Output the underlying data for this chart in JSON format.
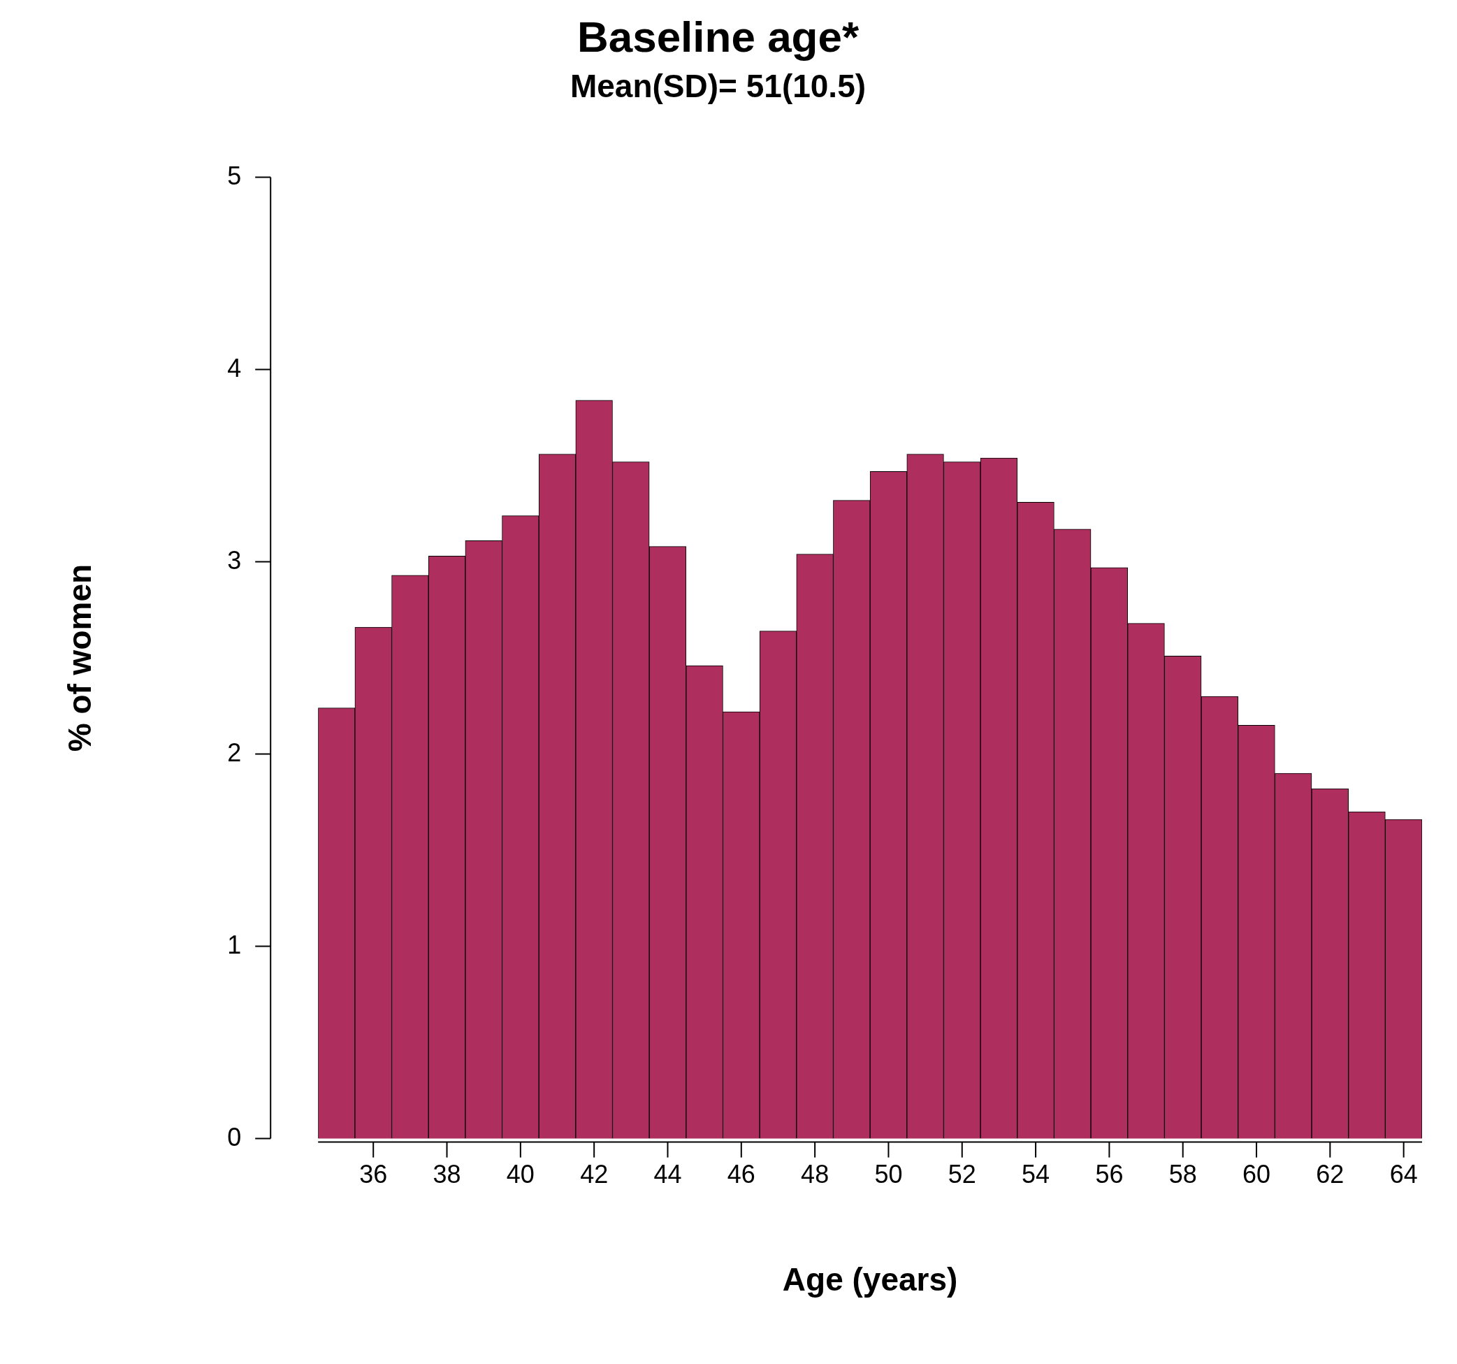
{
  "chart_data": {
    "type": "histogram",
    "title": "Baseline age*",
    "subtitle": "Mean(SD)= 51(10.5)",
    "xlabel": "Age (years)",
    "ylabel": "% of women",
    "bins": [
      34.5,
      35.5,
      36.5,
      37.5,
      38.5,
      39.5,
      40.5,
      41.5,
      42.5,
      43.5,
      44.5,
      45.5,
      46.5,
      47.5,
      48.5,
      49.5,
      50.5,
      51.5,
      52.5,
      53.5,
      54.5,
      55.5,
      56.5,
      57.5,
      58.5,
      59.5,
      60.5,
      61.5,
      62.5,
      63.5,
      64.5
    ],
    "values": [
      2.24,
      2.66,
      2.93,
      3.03,
      3.11,
      3.24,
      3.56,
      3.84,
      3.52,
      3.08,
      2.46,
      2.22,
      2.64,
      3.04,
      3.32,
      3.47,
      3.56,
      3.52,
      3.54,
      3.31,
      3.17,
      2.97,
      2.68,
      2.51,
      2.3,
      2.15,
      1.9,
      1.82,
      1.7,
      1.66
    ],
    "color": "#ae2f5e",
    "xlim": [
      34.5,
      64.5
    ],
    "xticks": [
      36,
      38,
      40,
      42,
      44,
      46,
      48,
      50,
      52,
      54,
      56,
      58,
      60,
      62,
      64
    ],
    "ylim": [
      0,
      5
    ],
    "yticks": [
      0,
      1,
      2,
      3,
      4,
      5
    ],
    "grid": false,
    "legend": false
  }
}
